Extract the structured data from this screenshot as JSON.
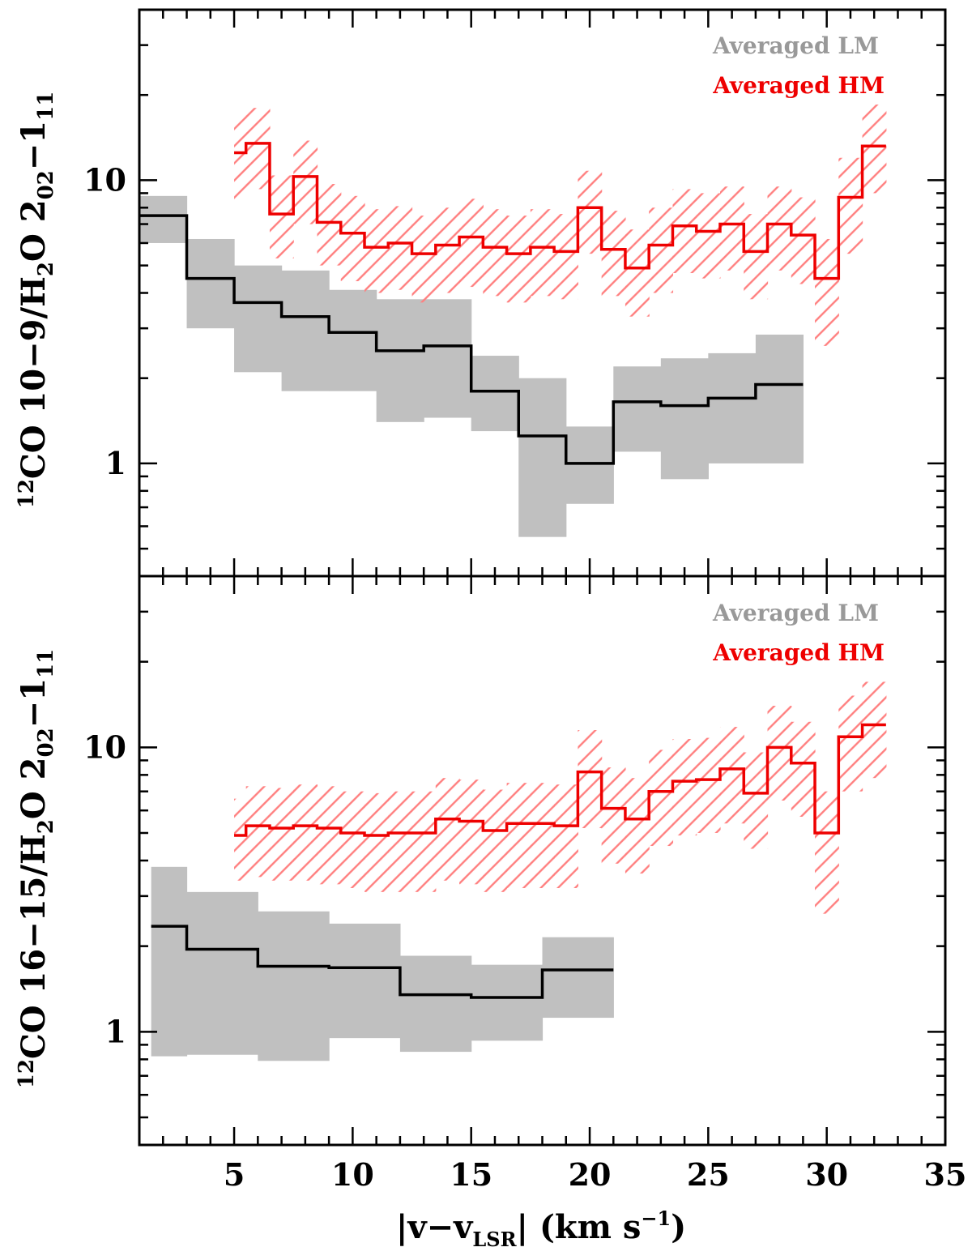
{
  "chart_data": [
    {
      "type": "line",
      "panel": "top",
      "ylabel": {
        "sup": "12",
        "pre": "CO 10−9/H",
        "sub1": "2",
        "mid": "O 2",
        "sub2": "02",
        "post": "−1",
        "sub3": "11"
      },
      "yscale": "log",
      "ylim": [
        0.4,
        40
      ],
      "xlim": [
        1,
        35
      ],
      "ytick_labels": [
        {
          "value": 1,
          "label": "1"
        },
        {
          "value": 10,
          "label": "10"
        }
      ],
      "legend": [
        {
          "name": "Averaged LM",
          "color": "#999999"
        },
        {
          "name": "Averaged HM",
          "color": "#ee0000"
        }
      ],
      "series": [
        {
          "name": "Averaged LM",
          "line_color": "#000000",
          "band_color": "#c0c0c0",
          "band_style": "filled",
          "edges": [
            1,
            3,
            5,
            7,
            9,
            11,
            13,
            15,
            17,
            19,
            21,
            23,
            25,
            27,
            29
          ],
          "values": [
            7.5,
            4.5,
            3.7,
            3.3,
            2.9,
            2.5,
            2.6,
            1.8,
            1.25,
            1.0,
            1.65,
            1.6,
            1.7,
            1.9
          ],
          "lower": [
            6.0,
            3.0,
            2.1,
            1.8,
            1.8,
            1.4,
            1.45,
            1.3,
            0.55,
            0.72,
            1.1,
            0.88,
            1.0,
            1.0
          ],
          "upper": [
            8.8,
            6.2,
            5.0,
            4.8,
            4.1,
            3.8,
            3.8,
            2.4,
            2.0,
            1.35,
            2.2,
            2.35,
            2.45,
            2.85
          ]
        },
        {
          "name": "Averaged HM",
          "line_color": "#ee0000",
          "band_color": "#ff7f7f",
          "band_style": "hatched",
          "edges": [
            5,
            5.5,
            6.5,
            7.5,
            8.5,
            9.5,
            10.5,
            11.5,
            12.5,
            13.5,
            14.5,
            15.5,
            16.5,
            17.5,
            18.5,
            19.5,
            20.5,
            21.5,
            22.5,
            23.5,
            24.5,
            25.5,
            26.5,
            27.5,
            28.5,
            29.5,
            30.5,
            31.5,
            32.5
          ],
          "values": [
            12.5,
            13.5,
            7.6,
            10.3,
            7.1,
            6.5,
            5.8,
            6.0,
            5.5,
            5.9,
            6.3,
            5.8,
            5.5,
            5.8,
            5.6,
            8.0,
            5.7,
            4.9,
            5.9,
            6.9,
            6.6,
            7.0,
            5.6,
            7.0,
            6.4,
            4.5,
            8.7,
            13.2
          ],
          "lower": [
            8.5,
            9.3,
            5.3,
            7.0,
            5.0,
            4.4,
            4.0,
            4.1,
            3.7,
            4.0,
            4.2,
            3.9,
            3.7,
            3.9,
            3.8,
            5.5,
            3.9,
            3.3,
            4.0,
            4.7,
            4.5,
            4.8,
            3.8,
            4.8,
            4.3,
            2.6,
            5.5,
            9.0
          ],
          "upper": [
            17.0,
            18.0,
            10.4,
            13.8,
            9.7,
            8.8,
            7.9,
            8.1,
            7.5,
            8.0,
            8.6,
            7.9,
            7.5,
            7.9,
            7.6,
            10.8,
            7.8,
            6.7,
            8.0,
            9.3,
            9.0,
            9.5,
            7.6,
            9.5,
            8.7,
            6.2,
            12.0,
            18.5
          ]
        }
      ]
    },
    {
      "type": "line",
      "panel": "bottom",
      "ylabel": {
        "sup": "12",
        "pre": "CO 16−15/H",
        "sub1": "2",
        "mid": "O 2",
        "sub2": "02",
        "post": "−1",
        "sub3": "11"
      },
      "yscale": "log",
      "ylim": [
        0.4,
        40
      ],
      "xlim": [
        1,
        35
      ],
      "xlabel": {
        "pre": "|v−v",
        "sub": "LSR",
        "mid": "| (km s",
        "sup": "−1",
        "post": ")"
      },
      "xtick_labels": [
        {
          "value": 5,
          "label": "5"
        },
        {
          "value": 10,
          "label": "10"
        },
        {
          "value": 15,
          "label": "15"
        },
        {
          "value": 20,
          "label": "20"
        },
        {
          "value": 25,
          "label": "25"
        },
        {
          "value": 30,
          "label": "30"
        },
        {
          "value": 35,
          "label": "35"
        }
      ],
      "ytick_labels": [
        {
          "value": 1,
          "label": "1"
        },
        {
          "value": 10,
          "label": "10"
        }
      ],
      "legend": [
        {
          "name": "Averaged LM",
          "color": "#999999"
        },
        {
          "name": "Averaged HM",
          "color": "#ee0000"
        }
      ],
      "series": [
        {
          "name": "Averaged LM",
          "line_color": "#000000",
          "band_color": "#c0c0c0",
          "band_style": "filled",
          "edges": [
            1.5,
            3,
            6,
            9,
            12,
            15,
            18,
            21
          ],
          "values": [
            2.35,
            1.95,
            1.7,
            1.68,
            1.35,
            1.32,
            1.65
          ],
          "lower": [
            0.82,
            0.83,
            0.79,
            0.95,
            0.85,
            0.93,
            1.12
          ],
          "upper": [
            3.8,
            3.1,
            2.65,
            2.4,
            1.85,
            1.72,
            2.15
          ]
        },
        {
          "name": "Averaged HM",
          "line_color": "#ee0000",
          "band_color": "#ff7f7f",
          "band_style": "hatched",
          "edges": [
            5,
            5.5,
            6.5,
            7.5,
            8.5,
            9.5,
            10.5,
            11.5,
            12.5,
            13.5,
            14.5,
            15.5,
            16.5,
            17.5,
            18.5,
            19.5,
            20.5,
            21.5,
            22.5,
            23.5,
            24.5,
            25.5,
            26.5,
            27.5,
            28.5,
            29.5,
            30.5,
            31.5,
            32.5
          ],
          "values": [
            4.9,
            5.3,
            5.2,
            5.3,
            5.2,
            5.0,
            4.9,
            5.0,
            5.0,
            5.6,
            5.5,
            5.1,
            5.4,
            5.4,
            5.3,
            8.2,
            6.1,
            5.6,
            7.0,
            7.6,
            7.7,
            8.4,
            6.9,
            10.0,
            8.8,
            5.0,
            10.9,
            12.0
          ],
          "lower": [
            3.4,
            3.5,
            3.4,
            3.4,
            3.3,
            3.2,
            3.1,
            3.1,
            3.1,
            3.4,
            3.3,
            3.1,
            3.2,
            3.2,
            3.2,
            5.2,
            3.9,
            3.6,
            4.5,
            4.9,
            5.0,
            5.4,
            4.4,
            6.5,
            5.7,
            2.6,
            7.0,
            7.8
          ],
          "upper": [
            6.6,
            7.3,
            7.2,
            7.4,
            7.3,
            7.0,
            6.9,
            7.0,
            7.0,
            7.8,
            7.7,
            7.1,
            7.5,
            7.5,
            7.4,
            11.5,
            8.5,
            7.8,
            9.8,
            10.7,
            10.8,
            11.8,
            9.6,
            14.0,
            12.3,
            7.0,
            15.2,
            17.0
          ]
        }
      ]
    }
  ]
}
